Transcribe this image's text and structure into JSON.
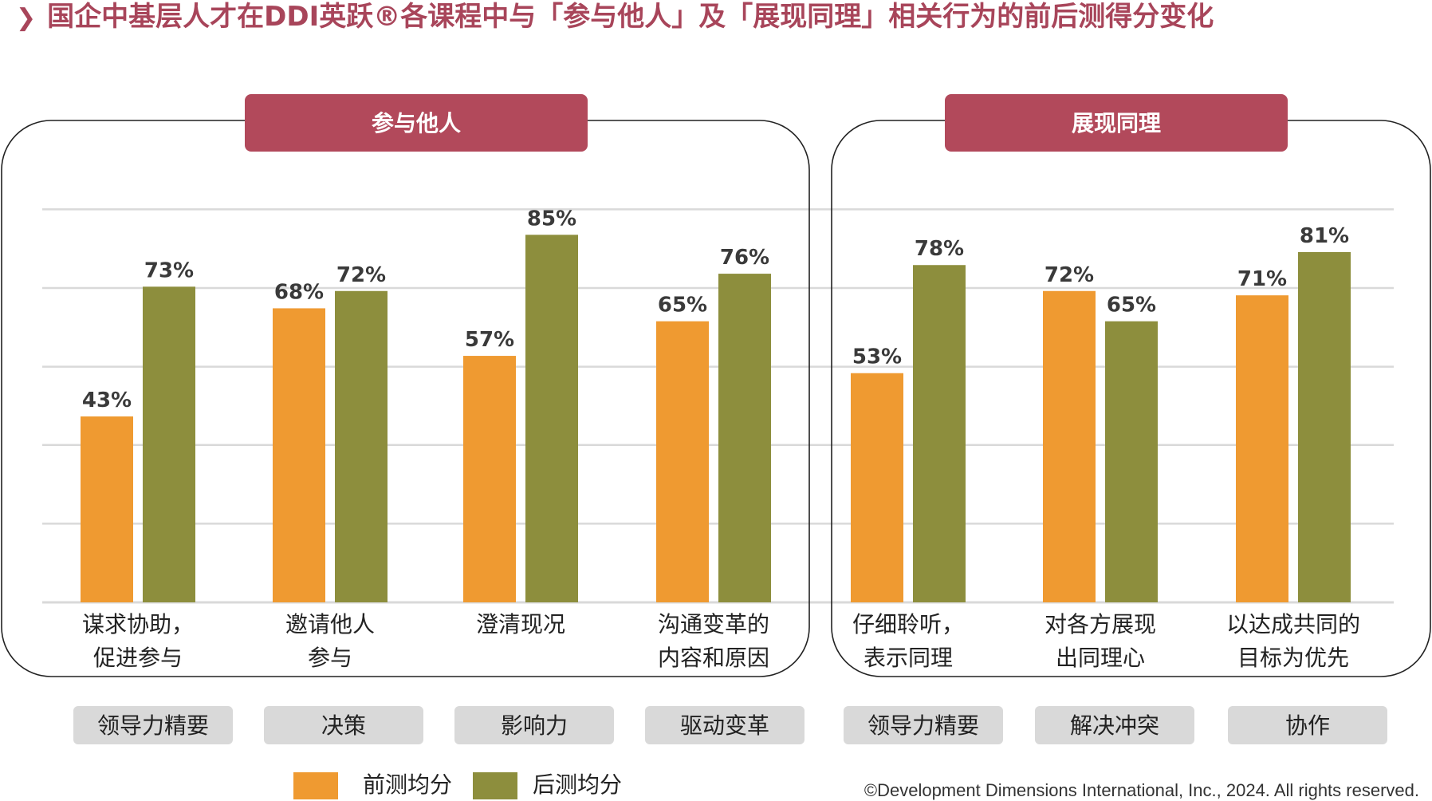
{
  "title": "国企中基层人才在DDI英跃®各课程中与「参与他人」及「展现同理」相关行为的前后测得分变化",
  "copyright": "©Development Dimensions International, Inc., 2024. All rights reserved.",
  "colors": {
    "pre": "#ef9a31",
    "post": "#8d8e3d",
    "header": "#b2495b",
    "course_bg": "#d9d9d9",
    "grid": "#d9d9d9"
  },
  "chart_data": {
    "type": "bar",
    "ylim": [
      0,
      100
    ],
    "legend": {
      "position": "bottom-left",
      "entries": [
        "前测均分",
        "后测均分"
      ]
    },
    "groups": [
      {
        "header": "参与他人",
        "categories": [
          {
            "label_lines": [
              "谋求协助，",
              "促进参与"
            ],
            "course": "领导力精要",
            "pre": 43,
            "post": 73
          },
          {
            "label_lines": [
              "邀请他人",
              "参与"
            ],
            "course": "决策",
            "pre": 68,
            "post": 72
          },
          {
            "label_lines": [
              "澄清现况"
            ],
            "course": "影响力",
            "pre": 57,
            "post": 85
          },
          {
            "label_lines": [
              "沟通变革的",
              "内容和原因"
            ],
            "course": "驱动变革",
            "pre": 65,
            "post": 76
          }
        ]
      },
      {
        "header": "展现同理",
        "categories": [
          {
            "label_lines": [
              "仔细聆听，",
              "表示同理"
            ],
            "course": "领导力精要",
            "pre": 53,
            "post": 78
          },
          {
            "label_lines": [
              "对各方展现",
              "出同理心"
            ],
            "course": "解决冲突",
            "pre": 72,
            "post": 65
          },
          {
            "label_lines": [
              "以达成共同的",
              "目标为优先"
            ],
            "course": "协作",
            "pre": 71,
            "post": 81
          }
        ]
      }
    ],
    "value_suffix": "%"
  }
}
